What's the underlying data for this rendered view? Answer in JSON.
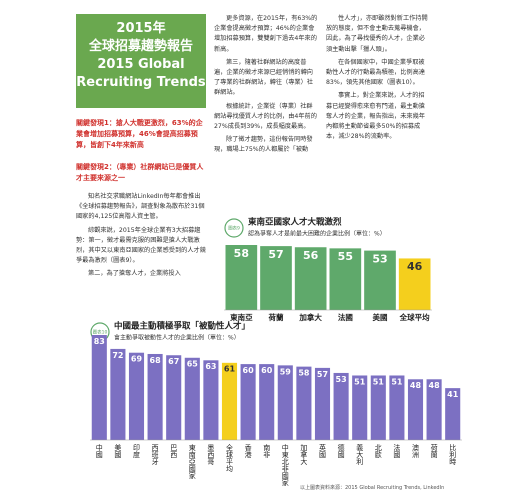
{
  "article": {
    "title_lines": [
      "2015年",
      "全球招募趨勢報告",
      "2015 Global",
      "Recruiting Trends"
    ],
    "key_findings": [
      "關鍵發現1：搶人大戰更激烈，63%的企業會增加招募預算，46%會提高招募預算，皆創下4年來新高",
      "關鍵發現2：（專業）社群網站已是優質人才主要來源之一"
    ],
    "columns": [
      [
        "知名社交求職網站LinkedIn每年都會推出《全球招募趨勢報告》，調查對象為散布於31個國家的4,125位高階人資主管。",
        "綜觀來說，2015年全球企業有3大招募趨勢：第一，徵才最需克服的困難是搶人大戰激烈，其中又以東南亞國家的企業感受到的人才競爭最為激烈（圖表9）。",
        "第二，為了搶奪人才，企業將投入"
      ],
      [
        "更多資源，在2015年，有63%的企業會提高徵才預算；46%的企業會增加招募預算，雙雙創下過去4年來的新高。",
        "第三，隨著社群網站的高度普遍，企業的徵才來源已經悄悄的轉向了專業的社群網站，轉往（專業）社群網站。",
        "根據統計，企業從（專業）社群網站尋找優質人才的比例，由4年前的27%成長到39%，成長幅度最高。",
        "除了徵才趨勢，這份報告同時發現，職場上75%的人都屬於「被動"
      ],
      [
        "性人才」，亦即雖然對新工作持開放的態度，但不會主動去蒐尋機會，因此，為了尋找優秀的人才，企業必須主動出擊「獵人頭」。",
        "在各個國家中，中國企業爭取被動性人才的行動最為積極，比例高達83%，領先其他國家（圖表10）。",
        "事實上，對企業來說，人才的招募已經變得愈來愈有門道，最主動搶奪人才的企業，報告指出，未來幾年內都將主動節省最多50%的招募成本，減少28%的流動率。"
      ]
    ]
  },
  "chart_data": [
    {
      "type": "bar",
      "figure": "圖表9",
      "title": "東南亞國家人才大戰激烈",
      "subtitle": "認為爭奪人才是前最大困難的企業比例（單位：%）",
      "categories": [
        "東南亞",
        "荷蘭",
        "加拿大",
        "法國",
        "美國",
        "全球平均"
      ],
      "values": [
        58,
        57,
        56,
        55,
        53,
        46
      ],
      "colors": [
        "#5fa96b",
        "#5fa96b",
        "#5fa96b",
        "#5fa96b",
        "#5fa96b",
        "#f4cf1d"
      ]
    },
    {
      "type": "bar",
      "figure": "圖表10",
      "title": "中國最主動積極爭取「被動性人才」",
      "subtitle": "會主動爭取被動性人才的企業比例（單位：%）",
      "categories": [
        "中國",
        "美國",
        "印度",
        "西班牙",
        "巴西",
        "東南亞國家",
        "墨西哥",
        "全球平均",
        "香港",
        "南非",
        "中東北非國家",
        "加拿大",
        "英國",
        "德國",
        "義大利",
        "北歐",
        "法國",
        "澳洲",
        "荷蘭",
        "比利時"
      ],
      "values": [
        83,
        72,
        69,
        68,
        67,
        65,
        63,
        61,
        60,
        60,
        59,
        58,
        57,
        53,
        51,
        51,
        51,
        48,
        48,
        41
      ],
      "colors": [
        "#7c70c2",
        "#7c70c2",
        "#7c70c2",
        "#7c70c2",
        "#7c70c2",
        "#7c70c2",
        "#7c70c2",
        "#f4cf1d",
        "#7c70c2",
        "#7c70c2",
        "#7c70c2",
        "#7c70c2",
        "#7c70c2",
        "#7c70c2",
        "#7c70c2",
        "#7c70c2",
        "#7c70c2",
        "#7c70c2",
        "#7c70c2",
        "#7c70c2"
      ]
    }
  ],
  "source": "以上圖表資料來源：2015 Global Recruiting Trends, LinkedIn"
}
